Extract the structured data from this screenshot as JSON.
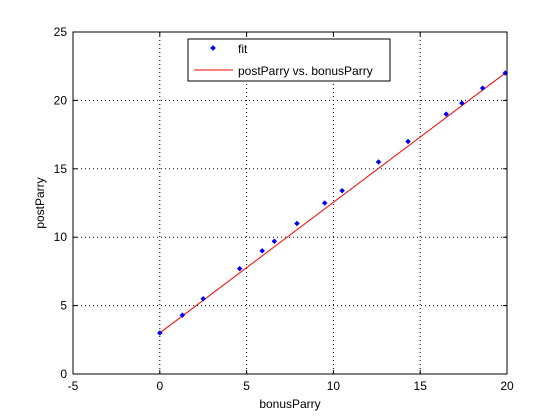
{
  "chart_data": {
    "type": "scatter",
    "xlabel": "bonusParry",
    "ylabel": "postParry",
    "xlim": [
      -5,
      20
    ],
    "ylim": [
      0,
      25
    ],
    "xticks": [
      -5,
      0,
      5,
      10,
      15,
      20
    ],
    "yticks": [
      0,
      5,
      10,
      15,
      20,
      25
    ],
    "xtick_labels": [
      "-5",
      "0",
      "5",
      "10",
      "15",
      "20"
    ],
    "ytick_labels": [
      "0",
      "5",
      "10",
      "15",
      "20",
      "25"
    ],
    "grid": true,
    "grid_style": "dotted",
    "legend_position": "top-center",
    "series": [
      {
        "name": "fit",
        "kind": "markers",
        "color": "#0000ff",
        "x": [
          0,
          1.3,
          2.5,
          4.6,
          5.9,
          6.6,
          7.9,
          9.5,
          10.5,
          12.6,
          14.3,
          16.5,
          17.4,
          18.6,
          19.9
        ],
        "y": [
          3.0,
          4.3,
          5.5,
          7.7,
          9.0,
          9.7,
          11.0,
          12.5,
          13.4,
          15.5,
          17.0,
          19.0,
          19.8,
          20.9,
          22.0
        ]
      },
      {
        "name": "postParry vs. bonusParry",
        "kind": "line",
        "color": "#ff0000",
        "x": [
          0,
          19.9
        ],
        "y": [
          3.0,
          22.0
        ]
      }
    ]
  }
}
